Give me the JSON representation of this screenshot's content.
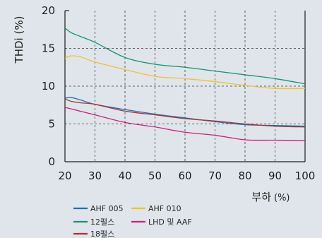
{
  "chart_data": {
    "type": "line",
    "title": "",
    "ylabel": "THDi (%)",
    "xlabel": "부하",
    "xlabel_unit": "(%)",
    "xlim": [
      20,
      100
    ],
    "ylim": [
      0,
      20
    ],
    "x_ticks": [
      20,
      30,
      40,
      50,
      60,
      70,
      80,
      90,
      100
    ],
    "y_ticks": [
      0,
      5,
      10,
      15,
      20
    ],
    "grid": "dashed",
    "legend_position": "bottom",
    "series": [
      {
        "name": "AHF 005",
        "color": "#1f6fb5",
        "x": [
          20,
          22,
          25,
          30,
          40,
          50,
          60,
          70,
          80,
          90,
          100
        ],
        "y": [
          8.4,
          8.5,
          8.2,
          7.6,
          6.9,
          6.3,
          5.8,
          5.3,
          4.9,
          4.8,
          4.7
        ]
      },
      {
        "name": "AHF 010",
        "color": "#f2c12e",
        "x": [
          20,
          22,
          25,
          30,
          40,
          50,
          60,
          70,
          80,
          90,
          100
        ],
        "y": [
          13.7,
          14.0,
          13.9,
          13.2,
          12.2,
          11.3,
          11.0,
          10.6,
          10.1,
          9.7,
          9.7
        ]
      },
      {
        "name": "12펄스",
        "color": "#13976a",
        "x": [
          20,
          22,
          25,
          30,
          40,
          50,
          60,
          70,
          80,
          90,
          100
        ],
        "y": [
          17.7,
          17.1,
          16.6,
          15.8,
          13.8,
          12.9,
          12.5,
          12.0,
          11.5,
          11.0,
          10.3
        ]
      },
      {
        "name": "LHD 및 AAF",
        "color": "#d41c7d",
        "x": [
          20,
          22,
          25,
          30,
          40,
          50,
          60,
          70,
          80,
          90,
          100
        ],
        "y": [
          7.2,
          7.0,
          6.7,
          6.2,
          5.2,
          4.6,
          3.9,
          3.5,
          2.9,
          2.85,
          2.8
        ]
      },
      {
        "name": "18펄스",
        "color": "#b03030",
        "x": [
          20,
          22,
          25,
          30,
          40,
          50,
          60,
          70,
          80,
          90,
          100
        ],
        "y": [
          8.3,
          8.0,
          7.8,
          7.6,
          6.7,
          6.2,
          5.7,
          5.4,
          5.0,
          4.7,
          4.6
        ]
      }
    ]
  }
}
